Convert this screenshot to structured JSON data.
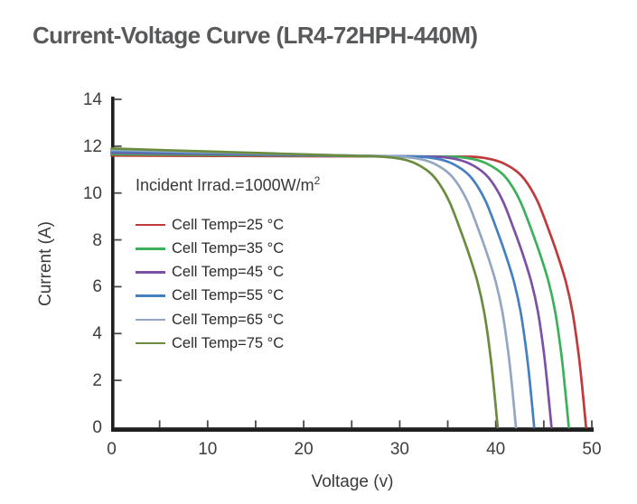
{
  "title": "Current-Voltage Curve (LR4-72HPH-440M)",
  "colors": {
    "background": "#ffffff",
    "axis_line": "#1f1f1f",
    "tick_mark": "#4a4a4a",
    "tick_text": "#3d3d3d",
    "title_text": "#58595b"
  },
  "chart_data": {
    "type": "line",
    "title": "Current-Voltage Curve (LR4-72HPH-440M)",
    "xlabel": "Voltage (v)",
    "ylabel": "Current (A)",
    "xlim": [
      0,
      50
    ],
    "ylim": [
      0,
      14
    ],
    "x_tick_labels": [
      0,
      10,
      20,
      30,
      40,
      50
    ],
    "x_tick_marks_step": 5,
    "y_ticks": [
      0,
      2,
      4,
      6,
      8,
      10,
      12,
      14
    ],
    "grid": "off",
    "legend_position": "inside-upper-left",
    "annotation": {
      "text": "Incident Irrad.=1000W/m",
      "sup": "2"
    },
    "series": [
      {
        "label": "Cell Temp=25 °C",
        "color": "#c03a3c",
        "isc_A": 11.6,
        "voc_V": 49.4
      },
      {
        "label": "Cell Temp=35 °C",
        "color": "#3cb05a",
        "isc_A": 11.66,
        "voc_V": 47.6
      },
      {
        "label": "Cell Temp=45 °C",
        "color": "#7b51a5",
        "isc_A": 11.72,
        "voc_V": 45.8
      },
      {
        "label": "Cell Temp=55 °C",
        "color": "#4480c0",
        "isc_A": 11.78,
        "voc_V": 44.0
      },
      {
        "label": "Cell Temp=65 °C",
        "color": "#93a7c4",
        "isc_A": 11.84,
        "voc_V": 42.1
      },
      {
        "label": "Cell Temp=75 °C",
        "color": "#6b8c3f",
        "isc_A": 11.9,
        "voc_V": 40.2
      }
    ],
    "knee_profile_dv_vs_current": [
      [
        12,
        11.55
      ],
      [
        10,
        11.45
      ],
      [
        8.5,
        11.25
      ],
      [
        7,
        10.85
      ],
      [
        6,
        10.35
      ],
      [
        5,
        9.6
      ],
      [
        4,
        8.55
      ],
      [
        3,
        7.4
      ],
      [
        2.1,
        6.2
      ],
      [
        1.4,
        4.9
      ],
      [
        0.8,
        3.2
      ],
      [
        0.4,
        1.7
      ],
      [
        0,
        0
      ]
    ]
  }
}
